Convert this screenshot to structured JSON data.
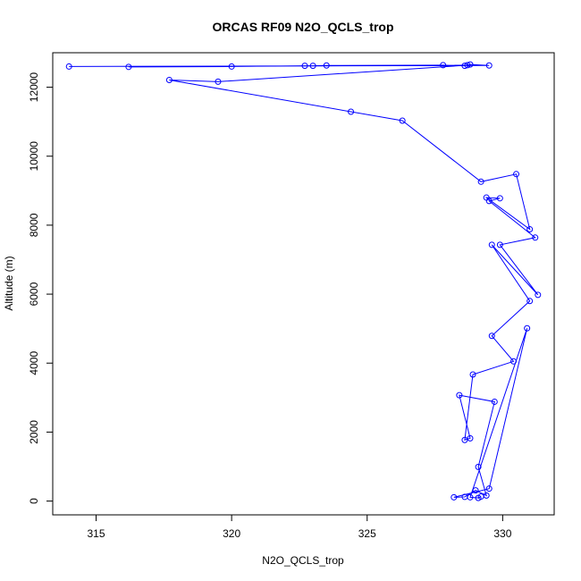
{
  "chart_data": {
    "type": "line",
    "title": "ORCAS RF09 N2O_QCLS_trop",
    "xlabel": "N2O_QCLS_trop",
    "ylabel": "Altitude (m)",
    "xlim": [
      313.4,
      331.9
    ],
    "ylim": [
      -400,
      13000
    ],
    "xticks": [
      315,
      320,
      325,
      330
    ],
    "yticks": [
      0,
      2000,
      4000,
      6000,
      8000,
      10000,
      12000
    ],
    "grid": false,
    "legend": "none",
    "markers": "open-circle",
    "color": "#0000ff",
    "series": [
      {
        "points": [
          [
            314.0,
            12600
          ],
          [
            329.5,
            12630
          ],
          [
            328.8,
            12660
          ],
          [
            328.6,
            12620
          ],
          [
            327.8,
            12640
          ],
          [
            323.5,
            12630
          ],
          [
            323.0,
            12620
          ],
          [
            322.7,
            12620
          ],
          [
            320.0,
            12600
          ],
          [
            316.2,
            12590
          ],
          [
            328.7,
            12640
          ],
          [
            319.5,
            12160
          ],
          [
            317.7,
            12210
          ],
          [
            324.4,
            11290
          ],
          [
            326.3,
            11030
          ],
          [
            329.2,
            9260
          ],
          [
            330.5,
            9480
          ],
          [
            331.0,
            7880
          ],
          [
            329.4,
            8800
          ],
          [
            329.9,
            8780
          ],
          [
            329.5,
            8700
          ],
          [
            331.2,
            7640
          ],
          [
            329.9,
            7430
          ],
          [
            331.3,
            5980
          ],
          [
            329.6,
            7430
          ],
          [
            331.0,
            5800
          ],
          [
            329.6,
            4790
          ],
          [
            330.4,
            4050
          ],
          [
            328.9,
            3670
          ],
          [
            328.6,
            1770
          ],
          [
            328.8,
            1820
          ],
          [
            328.4,
            3070
          ],
          [
            329.7,
            2880
          ],
          [
            329.1,
            990
          ],
          [
            329.4,
            160
          ],
          [
            329.0,
            310
          ],
          [
            328.6,
            120
          ],
          [
            328.2,
            110
          ],
          [
            329.5,
            360
          ],
          [
            330.9,
            5010
          ],
          [
            328.8,
            110
          ],
          [
            329.1,
            90
          ],
          [
            329.2,
            130
          ]
        ]
      }
    ]
  }
}
